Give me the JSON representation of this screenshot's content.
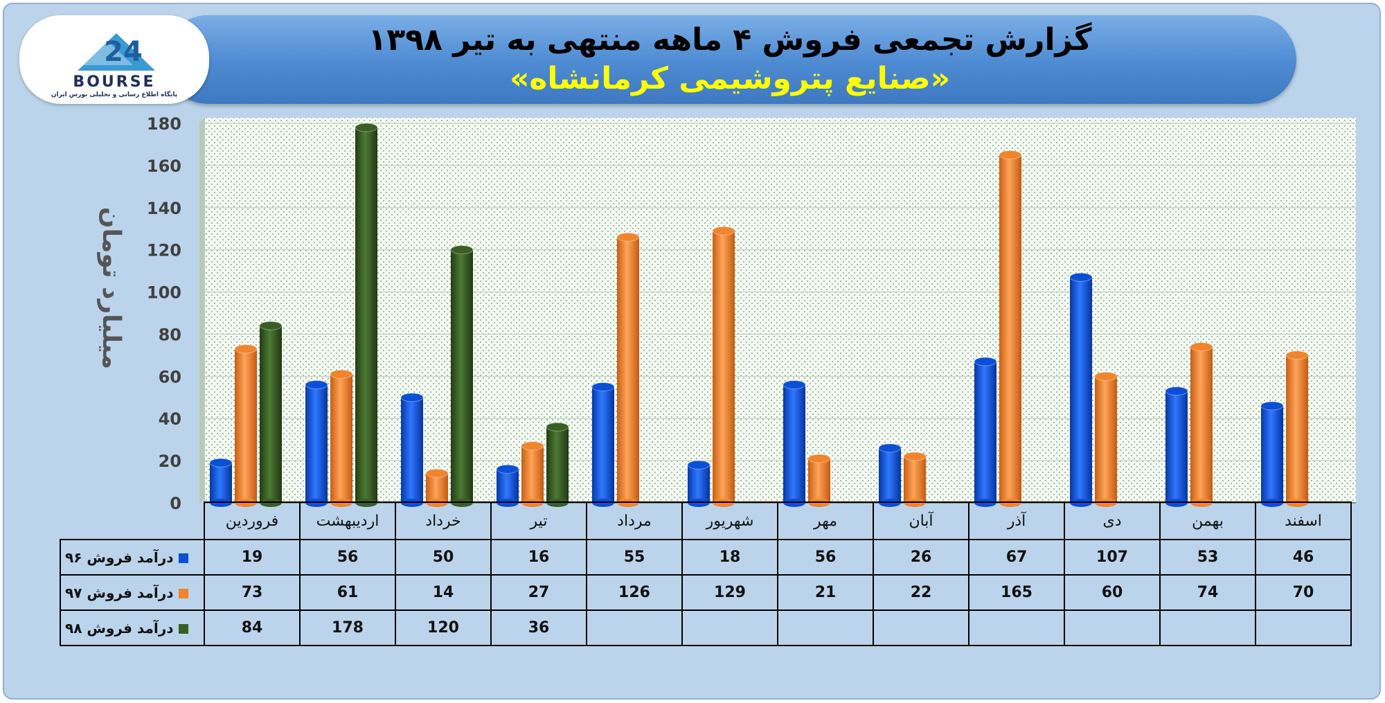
{
  "title": {
    "line1": "گزارش تجمعی فروش ۴ ماهه منتهی به تیر ۱۳۹۸",
    "line2": "«صنایع پتروشیمی کرمانشاه»"
  },
  "logo": {
    "text": "BOURSE",
    "subtitle": "پایگاه اطلاع رسانی و تحلیلی بورس ایران"
  },
  "colors": {
    "series_96": "#0a4fd6",
    "series_97": "#f0852d",
    "series_98": "#3a5e24",
    "banner": "#4d8ad2",
    "title_highlight": "#ffff00"
  },
  "chart_data": {
    "type": "bar",
    "title": "گزارش تجمعی فروش ۴ ماهه منتهی به تیر ۱۳۹۸",
    "subtitle": "«صنایع پتروشیمی کرمانشاه»",
    "xlabel": "",
    "ylabel": "میلیارد تومان",
    "ylim": [
      0,
      180
    ],
    "yticks": [
      0,
      20,
      40,
      60,
      80,
      100,
      120,
      140,
      160,
      180
    ],
    "grid": true,
    "legend": "table-left",
    "categories": [
      "فروردین",
      "اردیبهشت",
      "خرداد",
      "تیر",
      "مرداد",
      "شهریور",
      "مهر",
      "آبان",
      "آذر",
      "دی",
      "بهمن",
      "اسفند"
    ],
    "series": [
      {
        "name": "درآمد فروش ۹۶",
        "values": [
          19,
          56,
          50,
          16,
          55,
          18,
          56,
          26,
          67,
          107,
          53,
          46
        ]
      },
      {
        "name": "درآمد فروش ۹۷",
        "values": [
          73,
          61,
          14,
          27,
          126,
          129,
          21,
          22,
          165,
          60,
          74,
          70
        ]
      },
      {
        "name": "درآمد فروش ۹۸",
        "values": [
          84,
          178,
          120,
          36,
          null,
          null,
          null,
          null,
          null,
          null,
          null,
          null
        ]
      }
    ]
  }
}
